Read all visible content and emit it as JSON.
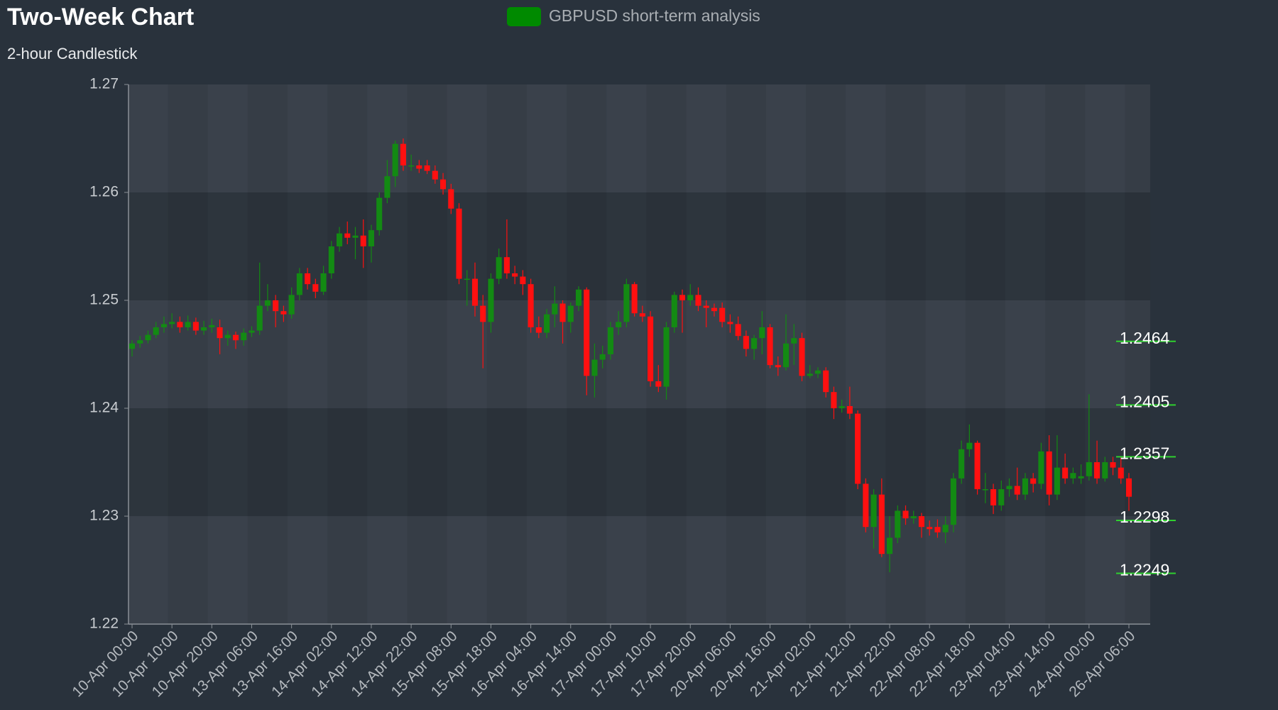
{
  "chart_data": {
    "type": "candlestick",
    "title": "Two-Week Chart",
    "subtitle": "2-hour Candlestick",
    "categories": [
      "10-Apr 00:00",
      null,
      null,
      null,
      null,
      "10-Apr 10:00",
      null,
      null,
      null,
      null,
      "10-Apr 20:00",
      null,
      null,
      null,
      null,
      "13-Apr 06:00",
      null,
      null,
      null,
      null,
      "13-Apr 16:00",
      null,
      null,
      null,
      null,
      "14-Apr 02:00",
      null,
      null,
      null,
      null,
      "14-Apr 12:00",
      null,
      null,
      null,
      null,
      "14-Apr 22:00",
      null,
      null,
      null,
      null,
      "15-Apr 08:00",
      null,
      null,
      null,
      null,
      "15-Apr 18:00",
      null,
      null,
      null,
      null,
      "16-Apr 04:00",
      null,
      null,
      null,
      null,
      "16-Apr 14:00",
      null,
      null,
      null,
      null,
      "17-Apr 00:00",
      null,
      null,
      null,
      null,
      "17-Apr 10:00",
      null,
      null,
      null,
      null,
      "17-Apr 20:00",
      null,
      null,
      null,
      null,
      "20-Apr 06:00",
      null,
      null,
      null,
      null,
      "20-Apr 16:00",
      null,
      null,
      null,
      null,
      "21-Apr 02:00",
      null,
      null,
      null,
      null,
      "21-Apr 12:00",
      null,
      null,
      null,
      null,
      "21-Apr 22:00",
      null,
      null,
      null,
      null,
      "22-Apr 08:00",
      null,
      null,
      null,
      null,
      "22-Apr 18:00",
      null,
      null,
      null,
      null,
      "23-Apr 04:00",
      null,
      null,
      null,
      null,
      "23-Apr 14:00",
      null,
      null,
      null,
      null,
      "24-Apr 00:00",
      null,
      null,
      null,
      null,
      "26-Apr 06:00"
    ],
    "series": [
      {
        "name": "GBPUSD short-term analysis",
        "color": "#008a00",
        "up_color": "#138a13",
        "down_color": "#ff1010",
        "open": [
          1.2455,
          1.246,
          1.2463,
          1.2468,
          1.2475,
          1.2478,
          1.248,
          1.2475,
          1.248,
          1.2472,
          1.2475,
          1.2475,
          1.2465,
          1.2468,
          1.2463,
          1.247,
          1.2472,
          1.2495,
          1.25,
          1.249,
          1.2487,
          1.2505,
          1.2525,
          1.2515,
          1.2508,
          1.2525,
          1.255,
          1.2562,
          1.2558,
          1.256,
          1.255,
          1.2565,
          1.2595,
          1.2615,
          1.2645,
          1.2625,
          1.2625,
          1.2625,
          1.262,
          1.2612,
          1.2603,
          1.2585,
          1.252,
          1.252,
          1.2495,
          1.248,
          1.252,
          1.254,
          1.2525,
          1.2522,
          1.2515,
          1.2475,
          1.247,
          1.2487,
          1.2497,
          1.248,
          1.2495,
          1.251,
          1.243,
          1.2445,
          1.245,
          1.2475,
          1.248,
          1.2515,
          1.2488,
          1.2485,
          1.2425,
          1.242,
          1.2475,
          1.2505,
          1.25,
          1.2505,
          1.2495,
          1.2493,
          1.2493,
          1.248,
          1.2478,
          1.2467,
          1.2455,
          1.2465,
          1.2475,
          1.244,
          1.2438,
          1.246,
          1.2465,
          1.243,
          1.2432,
          1.2435,
          1.2415,
          1.24,
          1.2402,
          1.2395,
          1.233,
          1.229,
          1.232,
          1.2265,
          1.228,
          1.2305,
          1.2298,
          1.23,
          1.229,
          1.229,
          1.2285,
          1.2292,
          1.2335,
          1.2362,
          1.2368,
          1.2325,
          1.2325,
          1.231,
          1.2325,
          1.2328,
          1.232,
          1.2335,
          1.233,
          1.236,
          1.232,
          1.2345,
          1.2335,
          1.2335,
          1.2337,
          1.235,
          1.2335,
          1.235,
          1.2345,
          1.2335
        ],
        "high": [
          1.2463,
          1.2467,
          1.2472,
          1.248,
          1.2485,
          1.2488,
          1.2485,
          1.2486,
          1.2484,
          1.2481,
          1.2483,
          1.2482,
          1.2472,
          1.2471,
          1.2474,
          1.2476,
          1.2535,
          1.2515,
          1.2505,
          1.2495,
          1.2512,
          1.253,
          1.253,
          1.252,
          1.2532,
          1.2555,
          1.2568,
          1.2573,
          1.2568,
          1.2575,
          1.257,
          1.26,
          1.263,
          1.2648,
          1.265,
          1.2635,
          1.263,
          1.263,
          1.2625,
          1.2618,
          1.2608,
          1.259,
          1.2528,
          1.2535,
          1.2505,
          1.2525,
          1.2548,
          1.2575,
          1.2532,
          1.2528,
          1.252,
          1.2485,
          1.2492,
          1.2513,
          1.25,
          1.2498,
          1.2513,
          1.2512,
          1.246,
          1.2458,
          1.248,
          1.249,
          1.252,
          1.2517,
          1.2495,
          1.249,
          1.244,
          1.248,
          1.2508,
          1.251,
          1.2515,
          1.2512,
          1.25,
          1.2497,
          1.2498,
          1.2487,
          1.2485,
          1.2472,
          1.2468,
          1.249,
          1.2478,
          1.2448,
          1.2487,
          1.2478,
          1.247,
          1.244,
          1.2438,
          1.2438,
          1.242,
          1.2408,
          1.242,
          1.2398,
          1.2335,
          1.2325,
          1.2335,
          1.23,
          1.231,
          1.231,
          1.2305,
          1.2303,
          1.2296,
          1.2297,
          1.23,
          1.234,
          1.237,
          1.2385,
          1.237,
          1.234,
          1.233,
          1.2333,
          1.2335,
          1.2345,
          1.234,
          1.234,
          1.2368,
          1.2375,
          1.2375,
          1.2358,
          1.2345,
          1.2348,
          1.2413,
          1.237,
          1.2355,
          1.2355,
          1.2355,
          1.234
        ],
        "low": [
          1.2448,
          1.2456,
          1.246,
          1.2465,
          1.247,
          1.2474,
          1.247,
          1.2472,
          1.2468,
          1.2468,
          1.247,
          1.245,
          1.2458,
          1.2455,
          1.2458,
          1.2466,
          1.2468,
          1.249,
          1.2475,
          1.248,
          1.2483,
          1.25,
          1.251,
          1.2502,
          1.2505,
          1.252,
          1.2545,
          1.2552,
          1.2538,
          1.253,
          1.2535,
          1.256,
          1.259,
          1.2605,
          1.262,
          1.262,
          1.2618,
          1.2617,
          1.2608,
          1.2598,
          1.258,
          1.2515,
          1.2495,
          1.2485,
          1.2437,
          1.247,
          1.2515,
          1.252,
          1.2515,
          1.2505,
          1.247,
          1.2465,
          1.2465,
          1.2475,
          1.246,
          1.247,
          1.249,
          1.2412,
          1.241,
          1.2437,
          1.2445,
          1.2468,
          1.2475,
          1.2485,
          1.248,
          1.242,
          1.2415,
          1.2408,
          1.247,
          1.247,
          1.2495,
          1.249,
          1.2475,
          1.2485,
          1.2475,
          1.247,
          1.2463,
          1.2448,
          1.2445,
          1.245,
          1.2437,
          1.243,
          1.2435,
          1.244,
          1.2425,
          1.2428,
          1.2428,
          1.241,
          1.239,
          1.2396,
          1.239,
          1.2325,
          1.2285,
          1.227,
          1.2262,
          1.2248,
          1.2275,
          1.2292,
          1.2293,
          1.228,
          1.2282,
          1.228,
          1.2275,
          1.2285,
          1.233,
          1.2355,
          1.232,
          1.2312,
          1.2302,
          1.2305,
          1.2318,
          1.2315,
          1.2315,
          1.2322,
          1.2325,
          1.231,
          1.2315,
          1.233,
          1.233,
          1.233,
          1.2333,
          1.233,
          1.2332,
          1.2338,
          1.233,
          1.2305
        ],
        "close": [
          1.246,
          1.2463,
          1.2468,
          1.2475,
          1.2478,
          1.248,
          1.2475,
          1.248,
          1.2472,
          1.2475,
          1.2477,
          1.2465,
          1.2468,
          1.2463,
          1.247,
          1.2472,
          1.2495,
          1.25,
          1.249,
          1.2487,
          1.2505,
          1.2525,
          1.2515,
          1.2508,
          1.2525,
          1.255,
          1.2562,
          1.2558,
          1.256,
          1.255,
          1.2565,
          1.2595,
          1.2615,
          1.2645,
          1.2625,
          1.2625,
          1.2622,
          1.262,
          1.2612,
          1.2603,
          1.2585,
          1.252,
          1.252,
          1.2495,
          1.248,
          1.252,
          1.254,
          1.2525,
          1.2522,
          1.2515,
          1.2475,
          1.247,
          1.2487,
          1.2497,
          1.248,
          1.2495,
          1.251,
          1.243,
          1.2445,
          1.245,
          1.2475,
          1.248,
          1.2515,
          1.2488,
          1.2485,
          1.2425,
          1.242,
          1.2475,
          1.2505,
          1.25,
          1.2505,
          1.2495,
          1.2493,
          1.249,
          1.248,
          1.2478,
          1.2467,
          1.2455,
          1.2465,
          1.2475,
          1.244,
          1.2438,
          1.246,
          1.2465,
          1.243,
          1.2432,
          1.2435,
          1.2415,
          1.24,
          1.2402,
          1.2395,
          1.233,
          1.229,
          1.232,
          1.2265,
          1.228,
          1.2305,
          1.2298,
          1.23,
          1.229,
          1.2288,
          1.2285,
          1.2292,
          1.2335,
          1.2362,
          1.2368,
          1.2325,
          1.2325,
          1.231,
          1.2325,
          1.2328,
          1.232,
          1.2335,
          1.233,
          1.236,
          1.232,
          1.2345,
          1.2335,
          1.234,
          1.2337,
          1.235,
          1.2335,
          1.235,
          1.2345,
          1.2335,
          1.2318
        ]
      }
    ],
    "ylim": [
      1.22,
      1.27
    ],
    "yticks": [
      1.22,
      1.23,
      1.24,
      1.25,
      1.26,
      1.27
    ],
    "levels": [
      1.2464,
      1.2405,
      1.2357,
      1.2298,
      1.2249
    ],
    "level_color": "#2fd02f"
  }
}
